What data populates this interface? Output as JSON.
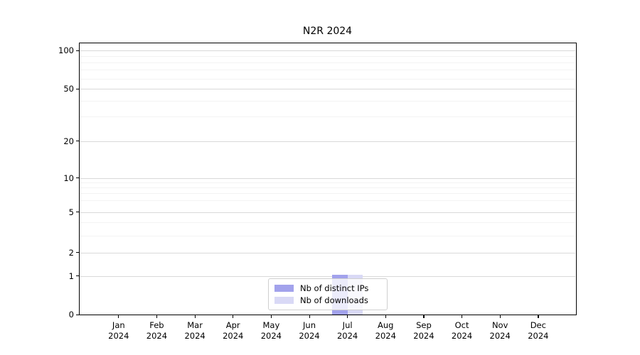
{
  "chart_data": {
    "type": "bar",
    "title": "N2R 2024",
    "categories": [
      "Jan 2024",
      "Feb 2024",
      "Mar 2024",
      "Apr 2024",
      "May 2024",
      "Jun 2024",
      "Jul 2024",
      "Aug 2024",
      "Sep 2024",
      "Oct 2024",
      "Nov 2024",
      "Dec 2024"
    ],
    "x_tick_labels": [
      [
        "Jan",
        "2024"
      ],
      [
        "Feb",
        "2024"
      ],
      [
        "Mar",
        "2024"
      ],
      [
        "Apr",
        "2024"
      ],
      [
        "May",
        "2024"
      ],
      [
        "Jun",
        "2024"
      ],
      [
        "Jul",
        "2024"
      ],
      [
        "Aug",
        "2024"
      ],
      [
        "Sep",
        "2024"
      ],
      [
        "Oct",
        "2024"
      ],
      [
        "Nov",
        "2024"
      ],
      [
        "Dec",
        "2024"
      ]
    ],
    "series": [
      {
        "name": "Nb of distinct IPs",
        "color": "#a2a2ec",
        "values": [
          0,
          0,
          0,
          0,
          0,
          0,
          1,
          0,
          0,
          0,
          0,
          0
        ]
      },
      {
        "name": "Nb of downloads",
        "color": "#d9d9f6",
        "values": [
          0,
          0,
          0,
          0,
          0,
          0,
          1,
          0,
          0,
          0,
          0,
          0
        ]
      }
    ],
    "yticks": [
      0,
      1,
      2,
      5,
      10,
      20,
      50,
      100
    ],
    "y_minor_ticks": [
      3,
      4,
      6,
      7,
      8,
      9,
      30,
      40,
      60,
      70,
      80,
      90
    ],
    "ylim": [
      0,
      110
    ],
    "yscale": "symlog",
    "grid": true,
    "legend_position": "bottom-center",
    "colors": {
      "axis": "#000000",
      "grid_major": "#d9d9d9",
      "grid_minor": "#f3f3f3",
      "background": "#ffffff",
      "text": "#000000"
    }
  }
}
